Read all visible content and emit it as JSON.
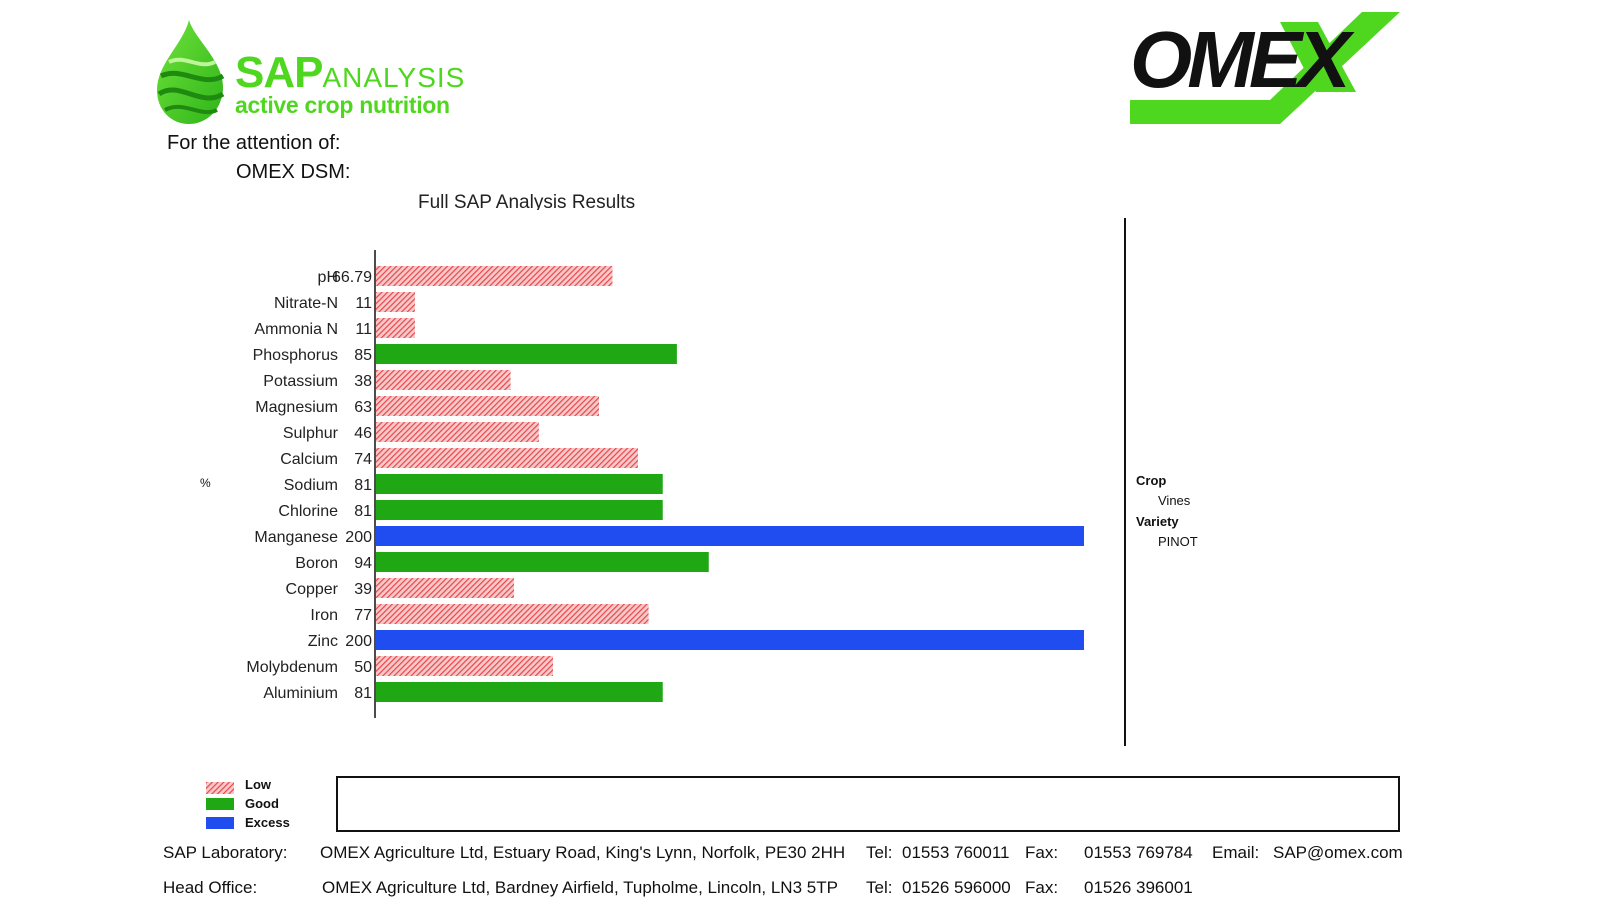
{
  "sap_logo": {
    "brand_bold": "SAP",
    "brand_light": "ANALYSIS",
    "tagline": "active crop nutrition"
  },
  "omex_logo": {
    "text": "OMEX"
  },
  "attention": {
    "line1": "For the attention of:",
    "line2": "OMEX DSM:"
  },
  "y_unit": "%",
  "side_info": {
    "crop_label": "Crop",
    "crop_value": "Vines",
    "variety_label": "Variety",
    "variety_value": "PINOT"
  },
  "legend": [
    {
      "label": "Low",
      "status": "low"
    },
    {
      "label": "Good",
      "status": "good"
    },
    {
      "label": "Excess",
      "status": "excess"
    }
  ],
  "colors": {
    "low": "#e8454a",
    "good": "#1fa813",
    "excess": "#1f4df0",
    "brand_green": "#4fd71f"
  },
  "footer": {
    "lab_label": "SAP Laboratory:",
    "lab_address": "OMEX Agriculture Ltd, Estuary Road, King's Lynn, Norfolk, PE30 2HH",
    "lab_tel_label": "Tel:",
    "lab_tel": "01553 760011",
    "lab_fax_label": "Fax:",
    "lab_fax": "01553 769784",
    "lab_email_label": "Email:",
    "lab_email": "SAP@omex.com",
    "head_label": "Head Office:",
    "head_address": "OMEX Agriculture Ltd, Bardney Airfield, Tupholme, Lincoln, LN3 5TP",
    "head_tel_label": "Tel:",
    "head_tel": "01526 596000",
    "head_fax_label": "Fax:",
    "head_fax": "01526 396001"
  },
  "chart_data": {
    "type": "bar",
    "orientation": "horizontal",
    "title": "Full SAP Analysis Results",
    "ylabel": "%",
    "xlim": [
      0,
      200
    ],
    "grid": false,
    "legend_position": "bottom-left",
    "categories": [
      "pH",
      "Nitrate-N",
      "Ammonia N",
      "Phosphorus",
      "Potassium",
      "Magnesium",
      "Sulphur",
      "Calcium",
      "Sodium",
      "Chlorine",
      "Manganese",
      "Boron",
      "Copper",
      "Iron",
      "Zinc",
      "Molybdenum",
      "Aluminium"
    ],
    "value_labels": [
      "66.79",
      "11",
      "11",
      "85",
      "38",
      "63",
      "46",
      "74",
      "81",
      "81",
      "200",
      "94",
      "39",
      "77",
      "200",
      "50",
      "81"
    ],
    "values": [
      66.79,
      11,
      11,
      85,
      38,
      63,
      46,
      74,
      81,
      81,
      200,
      94,
      39,
      77,
      200,
      50,
      81
    ],
    "status": [
      "low",
      "low",
      "low",
      "good",
      "low",
      "low",
      "low",
      "low",
      "good",
      "good",
      "excess",
      "good",
      "low",
      "low",
      "excess",
      "low",
      "good"
    ]
  }
}
